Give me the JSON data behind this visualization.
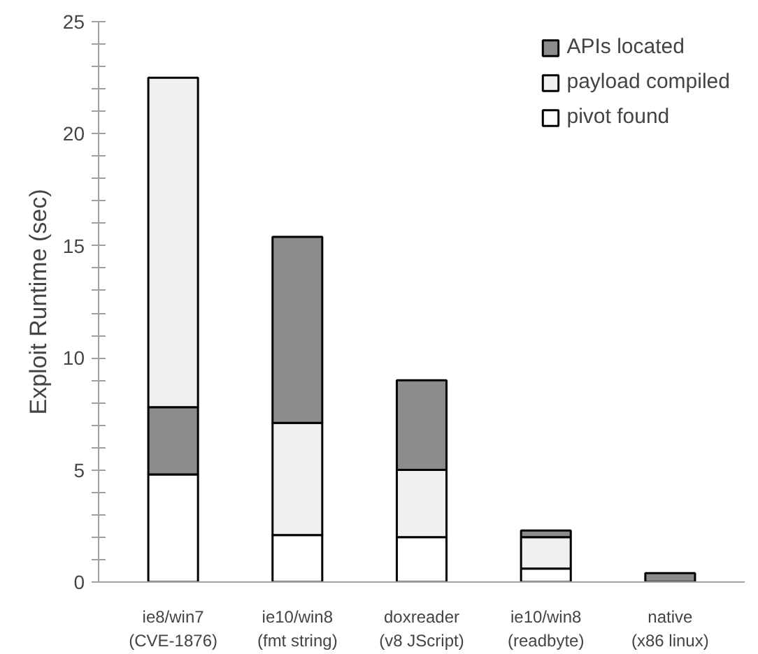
{
  "chart_data": {
    "type": "bar",
    "stacked": true,
    "ylabel": "Exploit Runtime (sec)",
    "categories": [
      "ie8/win7\n(CVE-1876)",
      "ie10/win8\n(fmt string)",
      "doxreader\n(v8 JScript)",
      "ie10/win8\n(readbyte)",
      "native\n(x86 linux)"
    ],
    "series": [
      {
        "name": "pivot found",
        "color": "#ffffff",
        "values": [
          4.8,
          2.1,
          2.0,
          0.6,
          null
        ]
      },
      {
        "color": "#8c8c8c",
        "values": [
          3.0,
          null,
          null,
          null,
          null
        ]
      },
      {
        "name": "payload compiled",
        "color": "#f0f0f0",
        "values": [
          14.7,
          5.0,
          3.0,
          1.4,
          null
        ]
      },
      {
        "name": "APIs located",
        "color": "#8c8c8c",
        "values": [
          null,
          8.3,
          4.0,
          0.3,
          0.4
        ]
      }
    ],
    "ylim": [
      0,
      25
    ],
    "yticks": [
      0,
      {
        "value": 1,
        "label": null
      },
      {
        "value": 2,
        "label": null
      },
      {
        "value": 3,
        "label": null
      },
      {
        "value": 4,
        "label": null
      },
      5,
      {
        "value": 6,
        "label": null
      },
      {
        "value": 7,
        "label": null
      },
      {
        "value": 8,
        "label": null
      },
      {
        "value": 9,
        "label": null
      },
      10,
      {
        "value": 11,
        "label": null
      },
      {
        "value": 12,
        "label": null
      },
      {
        "value": 13,
        "label": null
      },
      {
        "value": 14,
        "label": null
      },
      15,
      {
        "value": 16,
        "label": null
      },
      {
        "value": 17,
        "label": null
      },
      {
        "value": 18,
        "label": null
      },
      {
        "value": 19,
        "label": null
      },
      20,
      {
        "value": 21,
        "label": null
      },
      {
        "value": 22,
        "label": null
      },
      {
        "value": 23,
        "label": null
      },
      {
        "value": 24,
        "label": null
      },
      25
    ],
    "grid": false,
    "legend": "top right"
  }
}
